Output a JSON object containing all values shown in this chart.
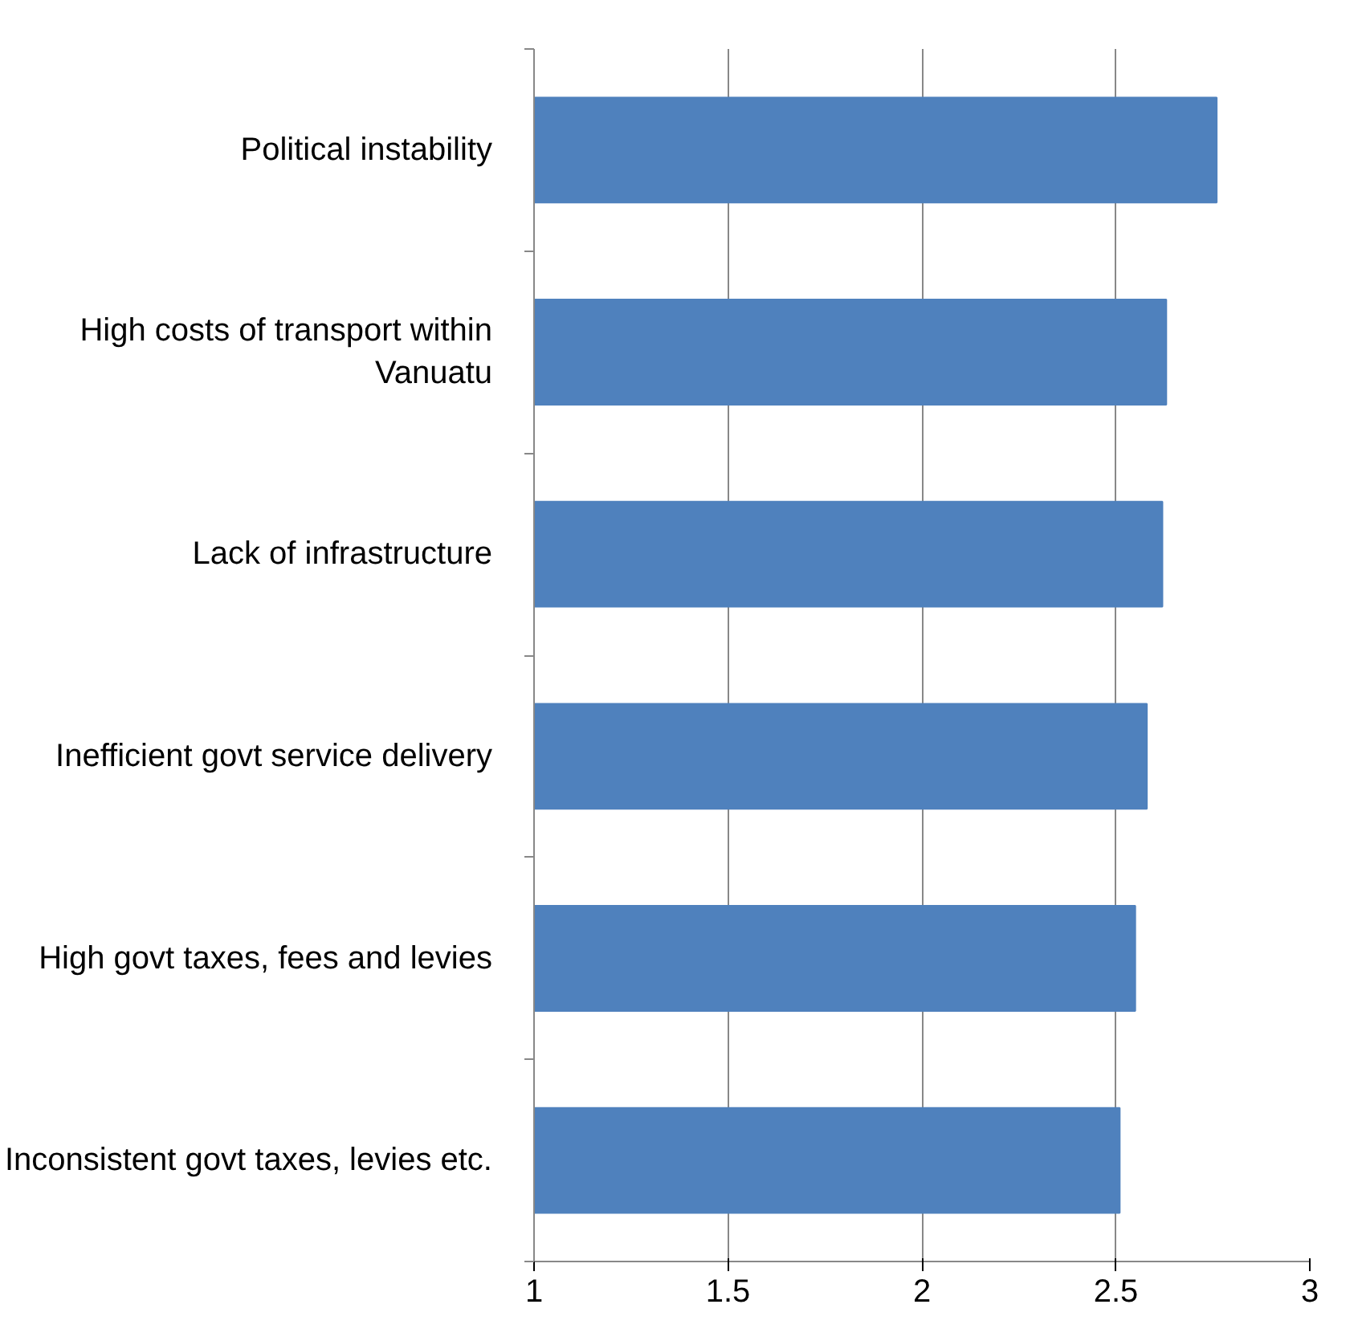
{
  "chart_data": {
    "type": "bar",
    "orientation": "horizontal",
    "categories": [
      "Political instability",
      "High costs of transport within Vanuatu",
      "Lack of infrastructure",
      "Inefficient govt service delivery",
      "High govt taxes, fees and levies",
      "Inconsistent govt taxes, levies etc."
    ],
    "values": [
      2.76,
      2.63,
      2.62,
      2.58,
      2.55,
      2.51
    ],
    "color": "#4f81bd",
    "xlim": [
      1,
      3
    ],
    "xticks": [
      1,
      1.5,
      2,
      2.5,
      3
    ],
    "grid": "x"
  }
}
